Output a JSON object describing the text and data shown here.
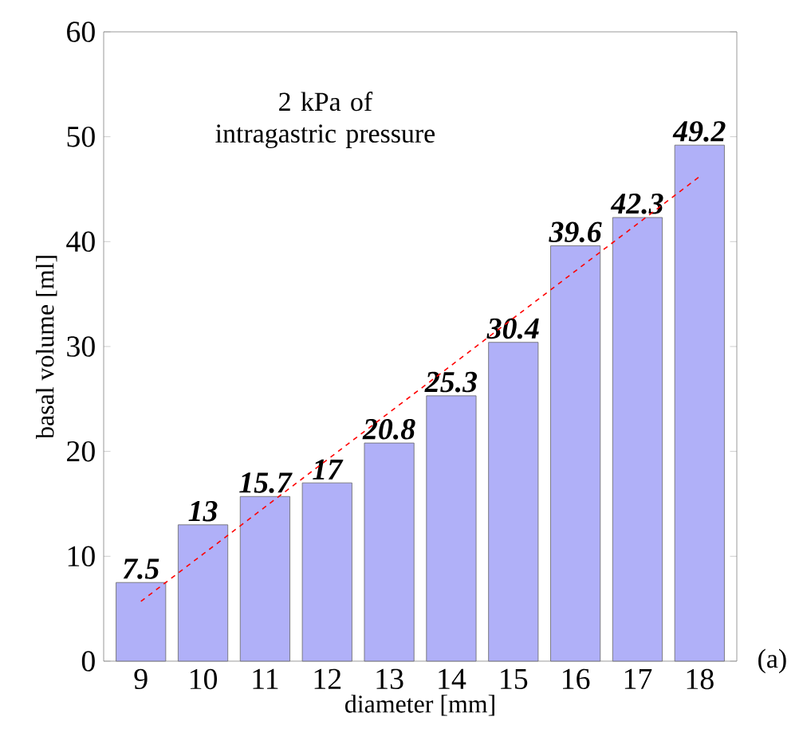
{
  "chart_data": {
    "type": "bar",
    "xlabel": "diameter [mm]",
    "ylabel": "basal volume [ml]",
    "x": [
      9,
      10,
      11,
      12,
      13,
      14,
      15,
      16,
      17,
      18
    ],
    "series": [
      {
        "color": "#b0b0f8",
        "values": [
          7.5,
          13,
          15.7,
          17,
          20.8,
          25.3,
          30.4,
          39.6,
          42.3,
          49.2
        ],
        "value_labels": [
          "7.5",
          "13",
          "15.7",
          "17",
          "20.8",
          "25.3",
          "30.4",
          "39.6",
          "42.3",
          "49.2"
        ]
      },
      {
        "type": "line",
        "color": "#ff0000",
        "line_style": "dashed",
        "x": [
          9,
          18
        ],
        "values": [
          5.7,
          46.2
        ]
      }
    ],
    "xlim": [
      8.4,
      18.6
    ],
    "xticks": [
      9,
      10,
      11,
      12,
      13,
      14,
      15,
      16,
      17,
      18
    ],
    "ylim": [
      0,
      60
    ],
    "yticks": [
      0,
      10,
      20,
      30,
      40,
      50,
      60
    ],
    "annotations": [
      "2 kPa of intragastric pressure",
      "(a)"
    ]
  }
}
